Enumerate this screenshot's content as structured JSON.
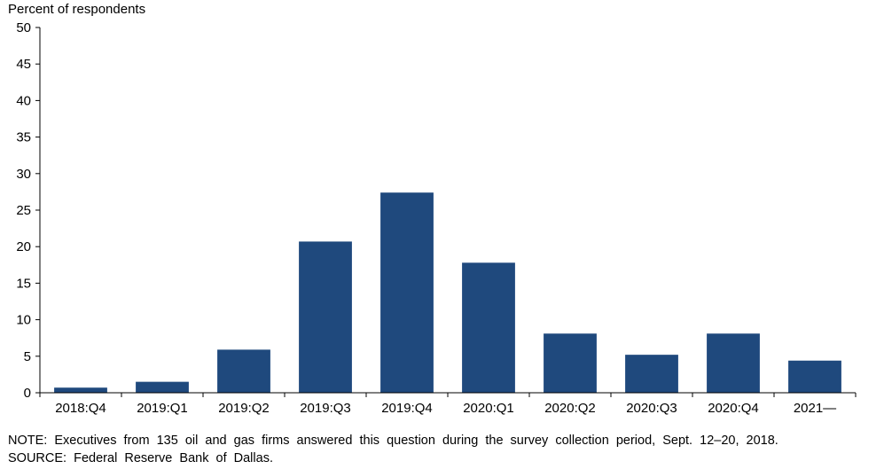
{
  "chart_data": {
    "type": "bar",
    "ylabel": "Percent of respondents",
    "categories": [
      "2018:Q4",
      "2019:Q1",
      "2019:Q2",
      "2019:Q3",
      "2019:Q4",
      "2020:Q1",
      "2020:Q2",
      "2020:Q3",
      "2020:Q4",
      "2021—"
    ],
    "values": [
      0.7,
      1.5,
      5.9,
      20.7,
      27.4,
      17.8,
      8.1,
      5.2,
      8.1,
      4.4
    ],
    "ylim": [
      0,
      50
    ],
    "yticks": [
      0,
      5,
      10,
      15,
      20,
      25,
      30,
      35,
      40,
      45,
      50
    ],
    "grid": false,
    "bar_color": "#1f497d"
  },
  "notes": {
    "note": "NOTE:  Executives  from  135  oil  and  gas  firms  answered  this  question  during  the  survey  collection  period,  Sept.  12–20,  2018.",
    "source": "SOURCE:  Federal  Reserve  Bank  of  Dallas."
  }
}
